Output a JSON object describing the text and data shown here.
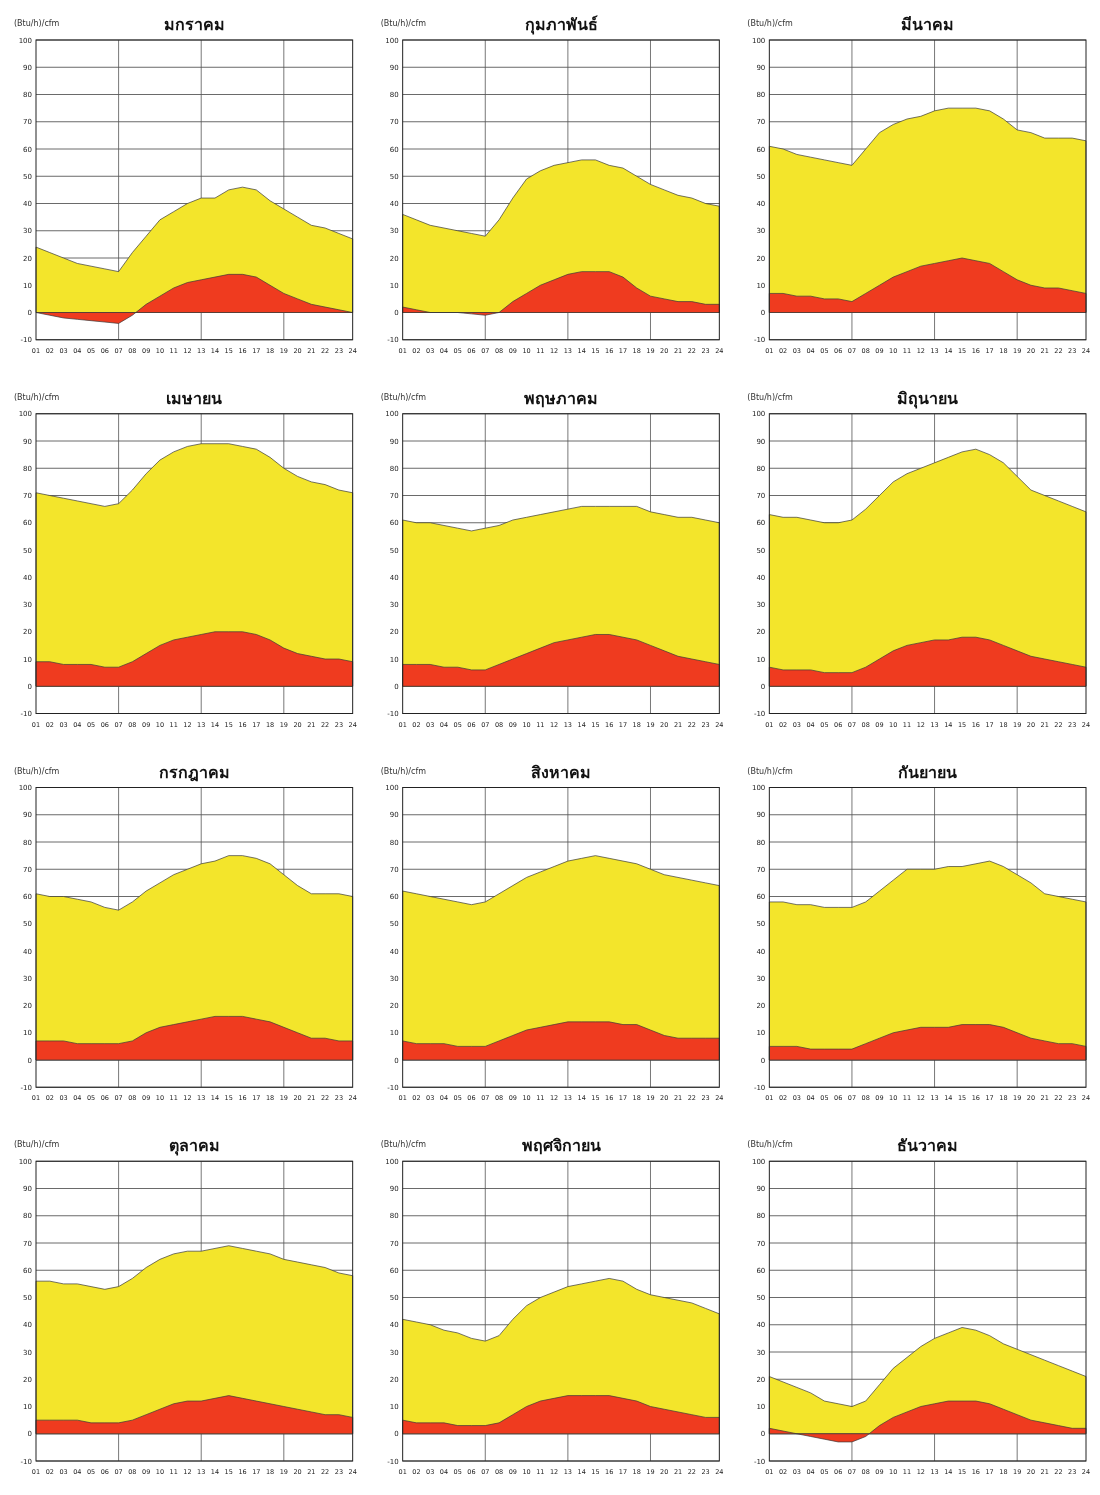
{
  "chart_data": [
    {
      "type": "area",
      "title": "มกราคม",
      "ylabel": "(Btu/h)/cfm",
      "x": [
        1,
        2,
        3,
        4,
        5,
        6,
        7,
        8,
        9,
        10,
        11,
        12,
        13,
        14,
        15,
        16,
        17,
        18,
        19,
        20,
        21,
        22,
        23,
        24
      ],
      "xlim": [
        1,
        24
      ],
      "xticks": [
        {
          "value": 1,
          "label": "01"
        },
        {
          "value": 2,
          "label": "02"
        },
        {
          "value": 3,
          "label": "03"
        },
        {
          "value": 4,
          "label": "04"
        },
        {
          "value": 5,
          "label": "05"
        },
        {
          "value": 6,
          "label": "06"
        },
        {
          "value": 7,
          "label": "07"
        },
        {
          "value": 8,
          "label": "08"
        },
        {
          "value": 9,
          "label": "09"
        },
        10,
        11,
        12,
        13,
        14,
        15,
        16,
        17,
        18,
        19,
        20,
        21,
        22,
        23,
        24
      ],
      "ylim": [
        -10,
        100
      ],
      "yticks": [
        -10,
        0,
        10,
        20,
        30,
        40,
        50,
        60,
        70,
        80,
        90,
        100
      ],
      "grid": "y",
      "ref_lines": [
        {
          "axis": "x",
          "value": 7,
          "color": "#555555"
        },
        {
          "axis": "x",
          "value": 13,
          "color": "#555555"
        },
        {
          "axis": "x",
          "value": 19,
          "color": "#555555"
        }
      ],
      "series": [
        {
          "color": "#f3e52b",
          "values": [
            24,
            22,
            20,
            18,
            17,
            16,
            15,
            22,
            28,
            34,
            37,
            40,
            42,
            42,
            45,
            46,
            45,
            41,
            38,
            35,
            32,
            31,
            29,
            27
          ]
        },
        {
          "color": "#ef3b1f",
          "values": [
            0,
            -1,
            -2,
            -2.5,
            -3,
            -3.5,
            -4,
            -1,
            3,
            6,
            9,
            11,
            12,
            13,
            14,
            14,
            13,
            10,
            7,
            5,
            3,
            2,
            1,
            0
          ]
        }
      ]
    },
    {
      "type": "area",
      "title": "กุมภาพันธ์",
      "ylabel": "(Btu/h)/cfm",
      "x": [
        1,
        2,
        3,
        4,
        5,
        6,
        7,
        8,
        9,
        10,
        11,
        12,
        13,
        14,
        15,
        16,
        17,
        18,
        19,
        20,
        21,
        22,
        23,
        24
      ],
      "xlim": [
        1,
        24
      ],
      "xticks": [
        {
          "value": 1,
          "label": "01"
        },
        {
          "value": 2,
          "label": "02"
        },
        {
          "value": 3,
          "label": "03"
        },
        {
          "value": 4,
          "label": "04"
        },
        {
          "value": 5,
          "label": "05"
        },
        {
          "value": 6,
          "label": "06"
        },
        {
          "value": 7,
          "label": "07"
        },
        {
          "value": 8,
          "label": "08"
        },
        {
          "value": 9,
          "label": "09"
        },
        10,
        11,
        12,
        13,
        14,
        15,
        16,
        17,
        18,
        19,
        20,
        21,
        22,
        23,
        24
      ],
      "ylim": [
        -10,
        100
      ],
      "yticks": [
        -10,
        0,
        10,
        20,
        30,
        40,
        50,
        60,
        70,
        80,
        90,
        100
      ],
      "grid": "y",
      "ref_lines": [
        {
          "axis": "x",
          "value": 7,
          "color": "#555555"
        },
        {
          "axis": "x",
          "value": 13,
          "color": "#555555"
        },
        {
          "axis": "x",
          "value": 19,
          "color": "#555555"
        }
      ],
      "series": [
        {
          "color": "#f3e52b",
          "values": [
            36,
            34,
            32,
            31,
            30,
            29,
            28,
            34,
            42,
            49,
            52,
            54,
            55,
            56,
            56,
            54,
            53,
            50,
            47,
            45,
            43,
            42,
            40,
            39
          ]
        },
        {
          "color": "#ef3b1f",
          "values": [
            2,
            1,
            0,
            0,
            0,
            -0.5,
            -1,
            0,
            4,
            7,
            10,
            12,
            14,
            15,
            15,
            15,
            13,
            9,
            6,
            5,
            4,
            4,
            3,
            3
          ]
        }
      ]
    },
    {
      "type": "area",
      "title": "มีนาคม",
      "ylabel": "(Btu/h)/cfm",
      "x": [
        1,
        2,
        3,
        4,
        5,
        6,
        7,
        8,
        9,
        10,
        11,
        12,
        13,
        14,
        15,
        16,
        17,
        18,
        19,
        20,
        21,
        22,
        23,
        24
      ],
      "xlim": [
        1,
        24
      ],
      "xticks": [
        {
          "value": 1,
          "label": "01"
        },
        {
          "value": 2,
          "label": "02"
        },
        {
          "value": 3,
          "label": "03"
        },
        {
          "value": 4,
          "label": "04"
        },
        {
          "value": 5,
          "label": "05"
        },
        {
          "value": 6,
          "label": "06"
        },
        {
          "value": 7,
          "label": "07"
        },
        {
          "value": 8,
          "label": "08"
        },
        {
          "value": 9,
          "label": "09"
        },
        10,
        11,
        12,
        13,
        14,
        15,
        16,
        17,
        18,
        19,
        20,
        21,
        22,
        23,
        24
      ],
      "ylim": [
        -10,
        100
      ],
      "yticks": [
        -10,
        0,
        10,
        20,
        30,
        40,
        50,
        60,
        70,
        80,
        90,
        100
      ],
      "grid": "y",
      "ref_lines": [
        {
          "axis": "x",
          "value": 7,
          "color": "#555555"
        },
        {
          "axis": "x",
          "value": 13,
          "color": "#555555"
        },
        {
          "axis": "x",
          "value": 19,
          "color": "#555555"
        }
      ],
      "series": [
        {
          "color": "#f3e52b",
          "values": [
            61,
            60,
            58,
            57,
            56,
            55,
            54,
            60,
            66,
            69,
            71,
            72,
            74,
            75,
            75,
            75,
            74,
            71,
            67,
            66,
            64,
            64,
            64,
            63
          ]
        },
        {
          "color": "#ef3b1f",
          "values": [
            7,
            7,
            6,
            6,
            5,
            5,
            4,
            7,
            10,
            13,
            15,
            17,
            18,
            19,
            20,
            19,
            18,
            15,
            12,
            10,
            9,
            9,
            8,
            7
          ]
        }
      ]
    },
    {
      "type": "area",
      "title": "เมษายน",
      "ylabel": "(Btu/h)/cfm",
      "x": [
        1,
        2,
        3,
        4,
        5,
        6,
        7,
        8,
        9,
        10,
        11,
        12,
        13,
        14,
        15,
        16,
        17,
        18,
        19,
        20,
        21,
        22,
        23,
        24
      ],
      "xlim": [
        1,
        24
      ],
      "xticks": [
        {
          "value": 1,
          "label": "01"
        },
        {
          "value": 2,
          "label": "02"
        },
        {
          "value": 3,
          "label": "03"
        },
        {
          "value": 4,
          "label": "04"
        },
        {
          "value": 5,
          "label": "05"
        },
        {
          "value": 6,
          "label": "06"
        },
        {
          "value": 7,
          "label": "07"
        },
        {
          "value": 8,
          "label": "08"
        },
        {
          "value": 9,
          "label": "09"
        },
        10,
        11,
        12,
        13,
        14,
        15,
        16,
        17,
        18,
        19,
        20,
        21,
        22,
        23,
        24
      ],
      "ylim": [
        -10,
        100
      ],
      "yticks": [
        -10,
        0,
        10,
        20,
        30,
        40,
        50,
        60,
        70,
        80,
        90,
        100
      ],
      "grid": "y",
      "ref_lines": [
        {
          "axis": "x",
          "value": 7,
          "color": "#555555"
        },
        {
          "axis": "x",
          "value": 13,
          "color": "#555555"
        },
        {
          "axis": "x",
          "value": 19,
          "color": "#555555"
        }
      ],
      "series": [
        {
          "color": "#f3e52b",
          "values": [
            71,
            70,
            69,
            68,
            67,
            66,
            67,
            72,
            78,
            83,
            86,
            88,
            89,
            89,
            89,
            88,
            87,
            84,
            80,
            77,
            75,
            74,
            72,
            71
          ]
        },
        {
          "color": "#ef3b1f",
          "values": [
            9,
            9,
            8,
            8,
            8,
            7,
            7,
            9,
            12,
            15,
            17,
            18,
            19,
            20,
            20,
            20,
            19,
            17,
            14,
            12,
            11,
            10,
            10,
            9
          ]
        }
      ]
    },
    {
      "type": "area",
      "title": "พฤษภาคม",
      "ylabel": "(Btu/h)/cfm",
      "x": [
        1,
        2,
        3,
        4,
        5,
        6,
        7,
        8,
        9,
        10,
        11,
        12,
        13,
        14,
        15,
        16,
        17,
        18,
        19,
        20,
        21,
        22,
        23,
        24
      ],
      "xlim": [
        1,
        24
      ],
      "xticks": [
        {
          "value": 1,
          "label": "01"
        },
        {
          "value": 2,
          "label": "02"
        },
        {
          "value": 3,
          "label": "03"
        },
        {
          "value": 4,
          "label": "04"
        },
        {
          "value": 5,
          "label": "05"
        },
        {
          "value": 6,
          "label": "06"
        },
        {
          "value": 7,
          "label": "07"
        },
        {
          "value": 8,
          "label": "08"
        },
        {
          "value": 9,
          "label": "09"
        },
        10,
        11,
        12,
        13,
        14,
        15,
        16,
        17,
        18,
        19,
        20,
        21,
        22,
        23,
        24
      ],
      "ylim": [
        -10,
        100
      ],
      "yticks": [
        -10,
        0,
        10,
        20,
        30,
        40,
        50,
        60,
        70,
        80,
        90,
        100
      ],
      "grid": "y",
      "ref_lines": [
        {
          "axis": "x",
          "value": 7,
          "color": "#555555"
        },
        {
          "axis": "x",
          "value": 13,
          "color": "#555555"
        },
        {
          "axis": "x",
          "value": 19,
          "color": "#555555"
        }
      ],
      "series": [
        {
          "color": "#f3e52b",
          "values": [
            61,
            60,
            60,
            59,
            58,
            57,
            58,
            59,
            61,
            62,
            63,
            64,
            65,
            66,
            66,
            66,
            66,
            66,
            64,
            63,
            62,
            62,
            61,
            60
          ]
        },
        {
          "color": "#ef3b1f",
          "values": [
            8,
            8,
            8,
            7,
            7,
            6,
            6,
            8,
            10,
            12,
            14,
            16,
            17,
            18,
            19,
            19,
            18,
            17,
            15,
            13,
            11,
            10,
            9,
            8
          ]
        }
      ]
    },
    {
      "type": "area",
      "title": "มิถุนายน",
      "ylabel": "(Btu/h)/cfm",
      "x": [
        1,
        2,
        3,
        4,
        5,
        6,
        7,
        8,
        9,
        10,
        11,
        12,
        13,
        14,
        15,
        16,
        17,
        18,
        19,
        20,
        21,
        22,
        23,
        24
      ],
      "xlim": [
        1,
        24
      ],
      "xticks": [
        {
          "value": 1,
          "label": "01"
        },
        {
          "value": 2,
          "label": "02"
        },
        {
          "value": 3,
          "label": "03"
        },
        {
          "value": 4,
          "label": "04"
        },
        {
          "value": 5,
          "label": "05"
        },
        {
          "value": 6,
          "label": "06"
        },
        {
          "value": 7,
          "label": "07"
        },
        {
          "value": 8,
          "label": "08"
        },
        {
          "value": 9,
          "label": "09"
        },
        10,
        11,
        12,
        13,
        14,
        15,
        16,
        17,
        18,
        19,
        20,
        21,
        22,
        23,
        24
      ],
      "ylim": [
        -10,
        100
      ],
      "yticks": [
        -10,
        0,
        10,
        20,
        30,
        40,
        50,
        60,
        70,
        80,
        90,
        100
      ],
      "grid": "y",
      "ref_lines": [
        {
          "axis": "x",
          "value": 7,
          "color": "#555555"
        },
        {
          "axis": "x",
          "value": 13,
          "color": "#555555"
        },
        {
          "axis": "x",
          "value": 19,
          "color": "#555555"
        }
      ],
      "series": [
        {
          "color": "#f3e52b",
          "values": [
            63,
            62,
            62,
            61,
            60,
            60,
            61,
            65,
            70,
            75,
            78,
            80,
            82,
            84,
            86,
            87,
            85,
            82,
            77,
            72,
            70,
            68,
            66,
            64
          ]
        },
        {
          "color": "#ef3b1f",
          "values": [
            7,
            6,
            6,
            6,
            5,
            5,
            5,
            7,
            10,
            13,
            15,
            16,
            17,
            17,
            18,
            18,
            17,
            15,
            13,
            11,
            10,
            9,
            8,
            7
          ]
        }
      ]
    },
    {
      "type": "area",
      "title": "กรกฎาคม",
      "ylabel": "(Btu/h)/cfm",
      "x": [
        1,
        2,
        3,
        4,
        5,
        6,
        7,
        8,
        9,
        10,
        11,
        12,
        13,
        14,
        15,
        16,
        17,
        18,
        19,
        20,
        21,
        22,
        23,
        24
      ],
      "xlim": [
        1,
        24
      ],
      "xticks": [
        {
          "value": 1,
          "label": "01"
        },
        {
          "value": 2,
          "label": "02"
        },
        {
          "value": 3,
          "label": "03"
        },
        {
          "value": 4,
          "label": "04"
        },
        {
          "value": 5,
          "label": "05"
        },
        {
          "value": 6,
          "label": "06"
        },
        {
          "value": 7,
          "label": "07"
        },
        {
          "value": 8,
          "label": "08"
        },
        {
          "value": 9,
          "label": "09"
        },
        10,
        11,
        12,
        13,
        14,
        15,
        16,
        17,
        18,
        19,
        20,
        21,
        22,
        23,
        24
      ],
      "ylim": [
        -10,
        100
      ],
      "yticks": [
        -10,
        0,
        10,
        20,
        30,
        40,
        50,
        60,
        70,
        80,
        90,
        100
      ],
      "grid": "y",
      "ref_lines": [
        {
          "axis": "x",
          "value": 7,
          "color": "#555555"
        },
        {
          "axis": "x",
          "value": 13,
          "color": "#555555"
        },
        {
          "axis": "x",
          "value": 19,
          "color": "#555555"
        }
      ],
      "series": [
        {
          "color": "#f3e52b",
          "values": [
            61,
            60,
            60,
            59,
            58,
            56,
            55,
            58,
            62,
            65,
            68,
            70,
            72,
            73,
            75,
            75,
            74,
            72,
            68,
            64,
            61,
            61,
            61,
            60
          ]
        },
        {
          "color": "#ef3b1f",
          "values": [
            7,
            7,
            7,
            6,
            6,
            6,
            6,
            7,
            10,
            12,
            13,
            14,
            15,
            16,
            16,
            16,
            15,
            14,
            12,
            10,
            8,
            8,
            7,
            7
          ]
        }
      ]
    },
    {
      "type": "area",
      "title": "สิงหาคม",
      "ylabel": "(Btu/h)/cfm",
      "x": [
        1,
        2,
        3,
        4,
        5,
        6,
        7,
        8,
        9,
        10,
        11,
        12,
        13,
        14,
        15,
        16,
        17,
        18,
        19,
        20,
        21,
        22,
        23,
        24
      ],
      "xlim": [
        1,
        24
      ],
      "xticks": [
        {
          "value": 1,
          "label": "01"
        },
        {
          "value": 2,
          "label": "02"
        },
        {
          "value": 3,
          "label": "03"
        },
        {
          "value": 4,
          "label": "04"
        },
        {
          "value": 5,
          "label": "05"
        },
        {
          "value": 6,
          "label": "06"
        },
        {
          "value": 7,
          "label": "07"
        },
        {
          "value": 8,
          "label": "08"
        },
        {
          "value": 9,
          "label": "09"
        },
        10,
        11,
        12,
        13,
        14,
        15,
        16,
        17,
        18,
        19,
        20,
        21,
        22,
        23,
        24
      ],
      "ylim": [
        -10,
        100
      ],
      "yticks": [
        -10,
        0,
        10,
        20,
        30,
        40,
        50,
        60,
        70,
        80,
        90,
        100
      ],
      "grid": "y",
      "ref_lines": [
        {
          "axis": "x",
          "value": 7,
          "color": "#555555"
        },
        {
          "axis": "x",
          "value": 13,
          "color": "#555555"
        },
        {
          "axis": "x",
          "value": 19,
          "color": "#555555"
        }
      ],
      "series": [
        {
          "color": "#f3e52b",
          "values": [
            62,
            61,
            60,
            59,
            58,
            57,
            58,
            61,
            64,
            67,
            69,
            71,
            73,
            74,
            75,
            74,
            73,
            72,
            70,
            68,
            67,
            66,
            65,
            64
          ]
        },
        {
          "color": "#ef3b1f",
          "values": [
            7,
            6,
            6,
            6,
            5,
            5,
            5,
            7,
            9,
            11,
            12,
            13,
            14,
            14,
            14,
            14,
            13,
            13,
            11,
            9,
            8,
            8,
            8,
            8
          ]
        }
      ]
    },
    {
      "type": "area",
      "title": "กันยายน",
      "ylabel": "(Btu/h)/cfm",
      "x": [
        1,
        2,
        3,
        4,
        5,
        6,
        7,
        8,
        9,
        10,
        11,
        12,
        13,
        14,
        15,
        16,
        17,
        18,
        19,
        20,
        21,
        22,
        23,
        24
      ],
      "xlim": [
        1,
        24
      ],
      "xticks": [
        {
          "value": 1,
          "label": "01"
        },
        {
          "value": 2,
          "label": "02"
        },
        {
          "value": 3,
          "label": "03"
        },
        {
          "value": 4,
          "label": "04"
        },
        {
          "value": 5,
          "label": "05"
        },
        {
          "value": 6,
          "label": "06"
        },
        {
          "value": 7,
          "label": "07"
        },
        {
          "value": 8,
          "label": "08"
        },
        {
          "value": 9,
          "label": "09"
        },
        10,
        11,
        12,
        13,
        14,
        15,
        16,
        17,
        18,
        19,
        20,
        21,
        22,
        23,
        24
      ],
      "ylim": [
        -10,
        100
      ],
      "yticks": [
        -10,
        0,
        10,
        20,
        30,
        40,
        50,
        60,
        70,
        80,
        90,
        100
      ],
      "grid": "y",
      "ref_lines": [
        {
          "axis": "x",
          "value": 7,
          "color": "#555555"
        },
        {
          "axis": "x",
          "value": 13,
          "color": "#555555"
        },
        {
          "axis": "x",
          "value": 19,
          "color": "#555555"
        }
      ],
      "series": [
        {
          "color": "#f3e52b",
          "values": [
            58,
            58,
            57,
            57,
            56,
            56,
            56,
            58,
            62,
            66,
            70,
            70,
            70,
            71,
            71,
            72,
            73,
            71,
            68,
            65,
            61,
            60,
            59,
            58
          ]
        },
        {
          "color": "#ef3b1f",
          "values": [
            5,
            5,
            5,
            4,
            4,
            4,
            4,
            6,
            8,
            10,
            11,
            12,
            12,
            12,
            13,
            13,
            13,
            12,
            10,
            8,
            7,
            6,
            6,
            5
          ]
        }
      ]
    },
    {
      "type": "area",
      "title": "ตุลาคม",
      "ylabel": "(Btu/h)/cfm",
      "x": [
        1,
        2,
        3,
        4,
        5,
        6,
        7,
        8,
        9,
        10,
        11,
        12,
        13,
        14,
        15,
        16,
        17,
        18,
        19,
        20,
        21,
        22,
        23,
        24
      ],
      "xlim": [
        1,
        24
      ],
      "xticks": [
        {
          "value": 1,
          "label": "01"
        },
        {
          "value": 2,
          "label": "02"
        },
        {
          "value": 3,
          "label": "03"
        },
        {
          "value": 4,
          "label": "04"
        },
        {
          "value": 5,
          "label": "05"
        },
        {
          "value": 6,
          "label": "06"
        },
        {
          "value": 7,
          "label": "07"
        },
        {
          "value": 8,
          "label": "08"
        },
        {
          "value": 9,
          "label": "09"
        },
        10,
        11,
        12,
        13,
        14,
        15,
        16,
        17,
        18,
        19,
        20,
        21,
        22,
        23,
        24
      ],
      "ylim": [
        -10,
        100
      ],
      "yticks": [
        -10,
        0,
        10,
        20,
        30,
        40,
        50,
        60,
        70,
        80,
        90,
        100
      ],
      "grid": "y",
      "ref_lines": [
        {
          "axis": "x",
          "value": 7,
          "color": "#555555"
        },
        {
          "axis": "x",
          "value": 13,
          "color": "#555555"
        },
        {
          "axis": "x",
          "value": 19,
          "color": "#555555"
        }
      ],
      "series": [
        {
          "color": "#f3e52b",
          "values": [
            56,
            56,
            55,
            55,
            54,
            53,
            54,
            57,
            61,
            64,
            66,
            67,
            67,
            68,
            69,
            68,
            67,
            66,
            64,
            63,
            62,
            61,
            59,
            58
          ]
        },
        {
          "color": "#ef3b1f",
          "values": [
            5,
            5,
            5,
            5,
            4,
            4,
            4,
            5,
            7,
            9,
            11,
            12,
            12,
            13,
            14,
            13,
            12,
            11,
            10,
            9,
            8,
            7,
            7,
            6
          ]
        }
      ]
    },
    {
      "type": "area",
      "title": "พฤศจิกายน",
      "ylabel": "(Btu/h)/cfm",
      "x": [
        1,
        2,
        3,
        4,
        5,
        6,
        7,
        8,
        9,
        10,
        11,
        12,
        13,
        14,
        15,
        16,
        17,
        18,
        19,
        20,
        21,
        22,
        23,
        24
      ],
      "xlim": [
        1,
        24
      ],
      "xticks": [
        {
          "value": 1,
          "label": "01"
        },
        {
          "value": 2,
          "label": "02"
        },
        {
          "value": 3,
          "label": "03"
        },
        {
          "value": 4,
          "label": "04"
        },
        {
          "value": 5,
          "label": "05"
        },
        {
          "value": 6,
          "label": "06"
        },
        {
          "value": 7,
          "label": "07"
        },
        {
          "value": 8,
          "label": "08"
        },
        {
          "value": 9,
          "label": "09"
        },
        10,
        11,
        12,
        13,
        14,
        15,
        16,
        17,
        18,
        19,
        20,
        21,
        22,
        23,
        24
      ],
      "ylim": [
        -10,
        100
      ],
      "yticks": [
        -10,
        0,
        10,
        20,
        30,
        40,
        50,
        60,
        70,
        80,
        90,
        100
      ],
      "grid": "y",
      "ref_lines": [
        {
          "axis": "x",
          "value": 7,
          "color": "#555555"
        },
        {
          "axis": "x",
          "value": 13,
          "color": "#555555"
        },
        {
          "axis": "x",
          "value": 19,
          "color": "#555555"
        }
      ],
      "series": [
        {
          "color": "#f3e52b",
          "values": [
            42,
            41,
            40,
            38,
            37,
            35,
            34,
            36,
            42,
            47,
            50,
            52,
            54,
            55,
            56,
            57,
            56,
            53,
            51,
            50,
            49,
            48,
            46,
            44
          ]
        },
        {
          "color": "#ef3b1f",
          "values": [
            5,
            4,
            4,
            4,
            3,
            3,
            3,
            4,
            7,
            10,
            12,
            13,
            14,
            14,
            14,
            14,
            13,
            12,
            10,
            9,
            8,
            7,
            6,
            6
          ]
        }
      ]
    },
    {
      "type": "area",
      "title": "ธันวาคม",
      "ylabel": "(Btu/h)/cfm",
      "x": [
        1,
        2,
        3,
        4,
        5,
        6,
        7,
        8,
        9,
        10,
        11,
        12,
        13,
        14,
        15,
        16,
        17,
        18,
        19,
        20,
        21,
        22,
        23,
        24
      ],
      "xlim": [
        1,
        24
      ],
      "xticks": [
        {
          "value": 1,
          "label": "01"
        },
        {
          "value": 2,
          "label": "02"
        },
        {
          "value": 3,
          "label": "03"
        },
        {
          "value": 4,
          "label": "04"
        },
        {
          "value": 5,
          "label": "05"
        },
        {
          "value": 6,
          "label": "06"
        },
        {
          "value": 7,
          "label": "07"
        },
        {
          "value": 8,
          "label": "08"
        },
        {
          "value": 9,
          "label": "09"
        },
        10,
        11,
        12,
        13,
        14,
        15,
        16,
        17,
        18,
        19,
        20,
        21,
        22,
        23,
        24
      ],
      "ylim": [
        -10,
        100
      ],
      "yticks": [
        -10,
        0,
        10,
        20,
        30,
        40,
        50,
        60,
        70,
        80,
        90,
        100
      ],
      "grid": "y",
      "ref_lines": [
        {
          "axis": "x",
          "value": 7,
          "color": "#555555"
        },
        {
          "axis": "x",
          "value": 13,
          "color": "#555555"
        },
        {
          "axis": "x",
          "value": 19,
          "color": "#555555"
        }
      ],
      "series": [
        {
          "color": "#f3e52b",
          "values": [
            21,
            19,
            17,
            15,
            12,
            11,
            10,
            12,
            18,
            24,
            28,
            32,
            35,
            37,
            39,
            38,
            36,
            33,
            31,
            29,
            27,
            25,
            23,
            21
          ]
        },
        {
          "color": "#ef3b1f",
          "values": [
            2,
            1,
            0,
            -1,
            -2,
            -3,
            -3,
            -1,
            3,
            6,
            8,
            10,
            11,
            12,
            12,
            12,
            11,
            9,
            7,
            5,
            4,
            3,
            2,
            2
          ]
        }
      ]
    }
  ]
}
